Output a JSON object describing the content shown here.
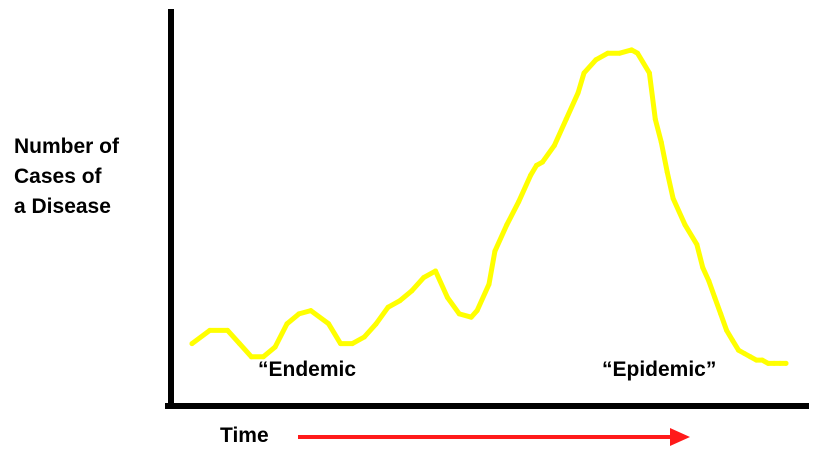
{
  "chart_data": {
    "type": "line",
    "title": "",
    "xlabel": "Time",
    "ylabel_lines": [
      "Number of",
      "Cases of",
      "a Disease"
    ],
    "axis_ticks": false,
    "grid": false,
    "legend": "none",
    "xlim": [
      0,
      100
    ],
    "ylim": [
      0,
      100
    ],
    "series": [
      {
        "color": "#ffff00",
        "x": [
          0,
          3,
          6,
          8,
          10,
          12,
          14,
          16,
          18,
          20,
          23,
          25,
          27,
          29,
          31,
          33,
          35,
          37,
          39,
          41,
          43,
          45,
          47,
          48,
          50,
          51,
          53,
          55,
          57,
          58,
          59,
          61,
          63,
          65,
          66,
          68,
          70,
          72,
          74,
          75,
          77,
          78,
          79,
          80,
          81,
          83,
          85,
          86,
          87,
          88,
          89,
          90,
          91,
          92,
          93,
          94,
          95,
          96,
          97,
          98,
          99,
          100
        ],
        "y": [
          8,
          12,
          12,
          8,
          4,
          4,
          7,
          14,
          17,
          18,
          14,
          8,
          8,
          10,
          14,
          19,
          21,
          24,
          28,
          30,
          22,
          17,
          16,
          18,
          26,
          36,
          44,
          51,
          59,
          62,
          63,
          68,
          76,
          84,
          90,
          94,
          96,
          96,
          97,
          96,
          90,
          76,
          69,
          60,
          52,
          44,
          38,
          31,
          27,
          22,
          17,
          12,
          9,
          6,
          5,
          4,
          3,
          3,
          2,
          2,
          2,
          2
        ]
      }
    ],
    "annotations": [
      {
        "text": "“Endemic",
        "x": 12
      },
      {
        "text": "“Epidemic”",
        "x": 74
      }
    ],
    "time_arrow_color": "#ff1a1a",
    "line_color": "#ffff00"
  }
}
